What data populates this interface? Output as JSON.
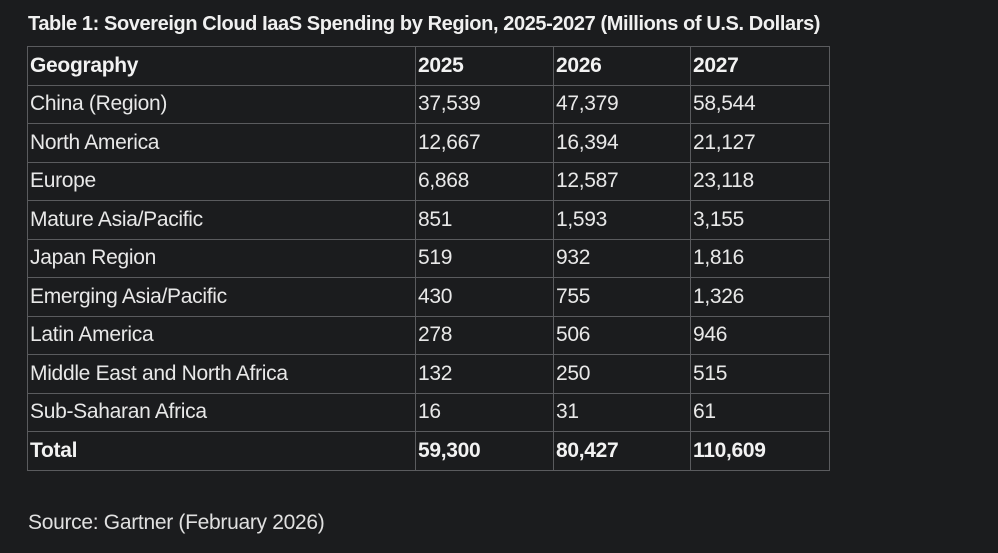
{
  "title": "Table 1: Sovereign Cloud IaaS Spending by Region, 2025-2027 (Millions of U.S. Dollars)",
  "table": {
    "headers": [
      "Geography",
      "2025",
      "2026",
      "2027"
    ],
    "rows": [
      [
        "China (Region)",
        "37,539",
        "47,379",
        "58,544"
      ],
      [
        "North America",
        "12,667",
        "16,394",
        "21,127"
      ],
      [
        "Europe",
        "6,868",
        "12,587",
        "23,118"
      ],
      [
        "Mature Asia/Pacific",
        "851",
        "1,593",
        "3,155"
      ],
      [
        "Japan Region",
        "519",
        "932",
        "1,816"
      ],
      [
        "Emerging Asia/Pacific",
        "430",
        "755",
        "1,326"
      ],
      [
        "Latin America",
        "278",
        "506",
        "946"
      ],
      [
        "Middle East and North Africa",
        "132",
        "250",
        "515"
      ],
      [
        "Sub-Saharan Africa",
        "16",
        "31",
        "61"
      ]
    ],
    "total": [
      "Total",
      "59,300",
      "80,427",
      "110,609"
    ]
  },
  "source": "Source: Gartner (February 2026)"
}
